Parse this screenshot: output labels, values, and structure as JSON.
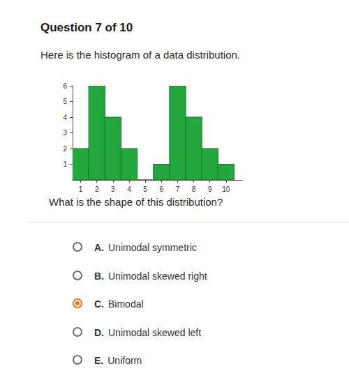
{
  "header": {
    "title": "Question 7 of 10"
  },
  "prompt": "Here is the histogram of a data distribution.",
  "chart_data": {
    "type": "histogram",
    "bins": [
      0.5,
      1.5,
      2.5,
      3.5,
      4.5,
      5.5,
      6.5,
      7.5,
      8.5,
      9.5,
      10.5
    ],
    "values": [
      2,
      6,
      4,
      2,
      0,
      1,
      6,
      4,
      2,
      1
    ],
    "color": "#22a83c",
    "xlim": [
      0.5,
      11
    ],
    "xticks": [
      1,
      2,
      3,
      4,
      5,
      6,
      7,
      8,
      9,
      10
    ],
    "ylim": [
      0,
      6
    ],
    "yticks": [
      1,
      2,
      3,
      4,
      5,
      6
    ],
    "grid": false
  },
  "question": "What is the shape of this distribution?",
  "options": [
    {
      "letter": "A.",
      "text": "Unimodal symmetric",
      "selected": false
    },
    {
      "letter": "B.",
      "text": "Unimodal skewed right",
      "selected": false
    },
    {
      "letter": "C.",
      "text": "Bimodal",
      "selected": true
    },
    {
      "letter": "D.",
      "text": "Unimodal skewed left",
      "selected": false
    },
    {
      "letter": "E.",
      "text": "Uniform",
      "selected": false
    }
  ]
}
